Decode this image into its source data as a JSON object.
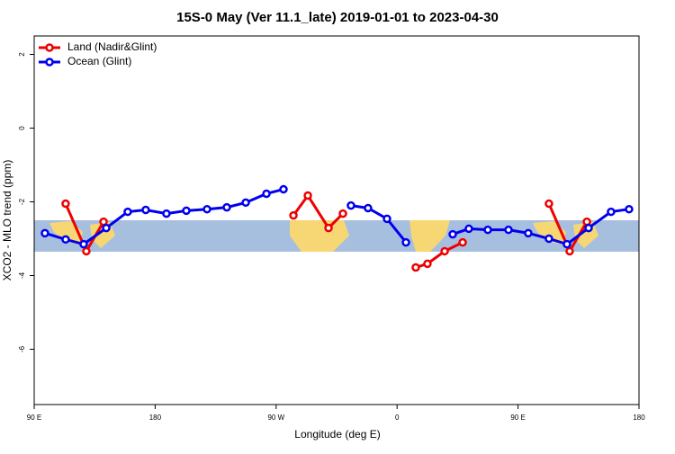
{
  "chart_data": {
    "type": "line",
    "title": "15S-0 May (Ver 11.1_late)   2019-01-01 to 2023-04-30",
    "xlabel": "Longitude (deg E)",
    "ylabel": "XCO2 - MLO trend (ppm)",
    "xlim": [
      90,
      540
    ],
    "xticks": [
      {
        "value": 90,
        "label": "90 E"
      },
      {
        "value": 180,
        "label": "180"
      },
      {
        "value": 270,
        "label": "90 W"
      },
      {
        "value": 360,
        "label": "0"
      },
      {
        "value": 450,
        "label": "90 E"
      },
      {
        "value": 540,
        "label": "180"
      }
    ],
    "ylim": [
      -7.5,
      2.5
    ],
    "yticks": [
      2,
      0,
      -2,
      -4,
      -6
    ],
    "legend": "top-left",
    "series": [
      {
        "name": "Land (Nadir&Glint)",
        "color": "#ee0000",
        "x": [
          113.4,
          128.8,
          141.6,
          null,
          282.9,
          293.6,
          309.0,
          319.7,
          null,
          373.9,
          382.6,
          395.4,
          408.8,
          null,
          473.0,
          488.4,
          501.2
        ],
        "values": [
          -2.05,
          -3.34,
          -2.54,
          null,
          -2.37,
          -1.83,
          -2.71,
          -2.32,
          null,
          -3.78,
          -3.68,
          -3.34,
          -3.1,
          null,
          -2.05,
          -3.34,
          -2.54
        ]
      },
      {
        "name": "Ocean (Glint)",
        "color": "#0000ee",
        "x": [
          98.0,
          113.4,
          126.8,
          143.6,
          159.6,
          173.0,
          188.4,
          203.2,
          218.6,
          233.3,
          247.4,
          262.8,
          275.5,
          null,
          325.7,
          338.4,
          352.5,
          366.6,
          null,
          401.4,
          413.4,
          427.5,
          442.9,
          457.6,
          473.0,
          486.4,
          502.5,
          519.2,
          532.6
        ],
        "values": [
          -2.85,
          -3.02,
          -3.15,
          -2.71,
          -2.27,
          -2.22,
          -2.32,
          -2.24,
          -2.2,
          -2.15,
          -2.02,
          -1.78,
          -1.66,
          null,
          -2.1,
          -2.17,
          -2.46,
          -3.1,
          null,
          -2.88,
          -2.73,
          -2.76,
          -2.76,
          -2.85,
          -3.0,
          -3.15,
          -2.71,
          -2.27,
          -2.2
        ]
      }
    ]
  }
}
